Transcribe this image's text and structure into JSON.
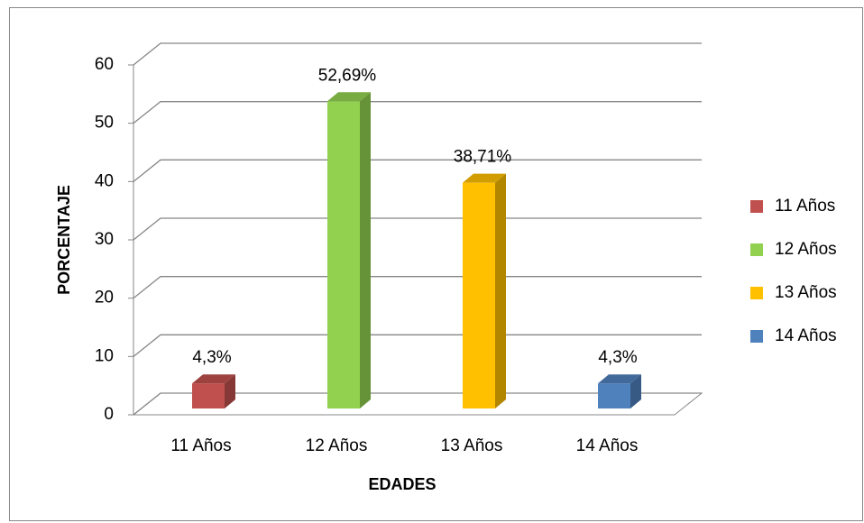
{
  "chart_data": {
    "type": "bar3d",
    "categories": [
      "11 Años",
      "12 Años",
      "13 Años",
      "14 Años"
    ],
    "values": [
      4.3,
      52.69,
      38.71,
      4.3
    ],
    "value_labels": [
      "4,3%",
      "52,69%",
      "38,71%",
      "4,3%"
    ],
    "colors": [
      "#c0504d",
      "#92d050",
      "#ffc000",
      "#4f81bd"
    ],
    "xlabel": "EDADES",
    "ylabel": "PORCENTAJE",
    "ylim": [
      0,
      60
    ],
    "yticks": [
      0,
      10,
      20,
      30,
      40,
      50,
      60
    ],
    "grid": true,
    "legend": "right"
  }
}
